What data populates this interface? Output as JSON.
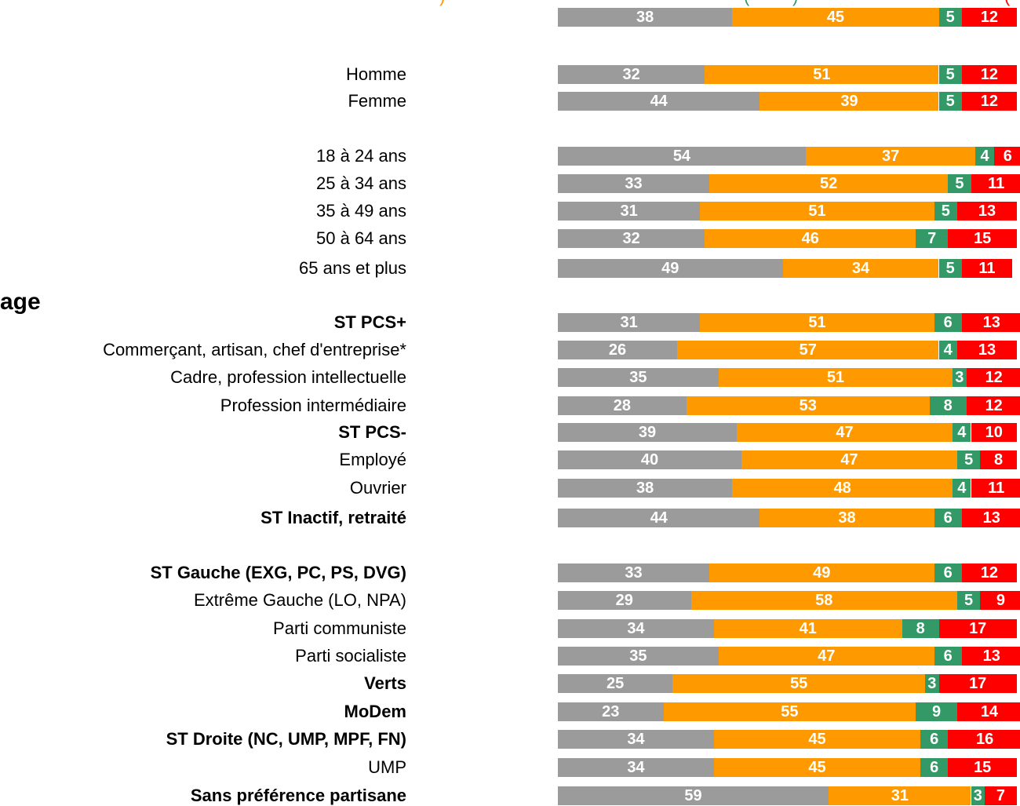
{
  "colors": {
    "grey": "#9b9b9b",
    "orange": "#ff9900",
    "green": "#339966",
    "red": "#ff0000",
    "text_white": "#ffffff"
  },
  "section_label": "age",
  "chart_data": {
    "type": "bar",
    "orientation": "horizontal",
    "stacked": true,
    "percent_scale": true,
    "xlim": [
      0,
      100
    ],
    "categories": [
      "",
      "Homme",
      "Femme",
      "18 à 24 ans",
      "25 à 34 ans",
      "35 à 49 ans",
      "50 à 64 ans",
      "65 ans et plus",
      "ST PCS+",
      "Commerçant, artisan, chef d'entreprise*",
      "Cadre, profession intellectuelle",
      "Profession intermédiaire",
      "ST PCS-",
      "Employé",
      "Ouvrier",
      "ST Inactif, retraité",
      "ST Gauche (EXG, PC, PS, DVG)",
      "Extrême Gauche (LO, NPA)",
      "Parti communiste",
      "Parti socialiste",
      "Verts",
      "MoDem",
      "ST Droite (NC, UMP, MPF, FN)",
      "UMP",
      "Sans préférence partisane"
    ],
    "bold_categories": [
      "ST PCS+",
      "ST PCS-",
      "ST Inactif, retraité",
      "ST Gauche (EXG, PC, PS, DVG)",
      "Verts",
      "MoDem",
      "ST Droite (NC, UMP, MPF, FN)",
      "Sans préférence partisane"
    ],
    "series": [
      {
        "color": "#9b9b9b",
        "values": [
          38,
          32,
          44,
          54,
          33,
          31,
          32,
          49,
          31,
          26,
          35,
          28,
          39,
          40,
          38,
          44,
          33,
          29,
          34,
          35,
          25,
          23,
          34,
          34,
          59
        ]
      },
      {
        "color": "#ff9900",
        "values": [
          45,
          51,
          39,
          37,
          52,
          51,
          46,
          34,
          51,
          57,
          51,
          53,
          47,
          47,
          48,
          38,
          49,
          58,
          41,
          47,
          55,
          55,
          45,
          45,
          31
        ]
      },
      {
        "color": "#339966",
        "values": [
          5,
          5,
          5,
          4,
          5,
          5,
          7,
          5,
          6,
          4,
          3,
          8,
          4,
          5,
          4,
          6,
          6,
          5,
          8,
          6,
          3,
          9,
          6,
          6,
          3
        ]
      },
      {
        "color": "#ff0000",
        "values": [
          12,
          12,
          12,
          6,
          11,
          13,
          15,
          11,
          13,
          13,
          12,
          12,
          10,
          8,
          11,
          13,
          12,
          9,
          17,
          13,
          17,
          14,
          16,
          15,
          7
        ]
      }
    ]
  }
}
